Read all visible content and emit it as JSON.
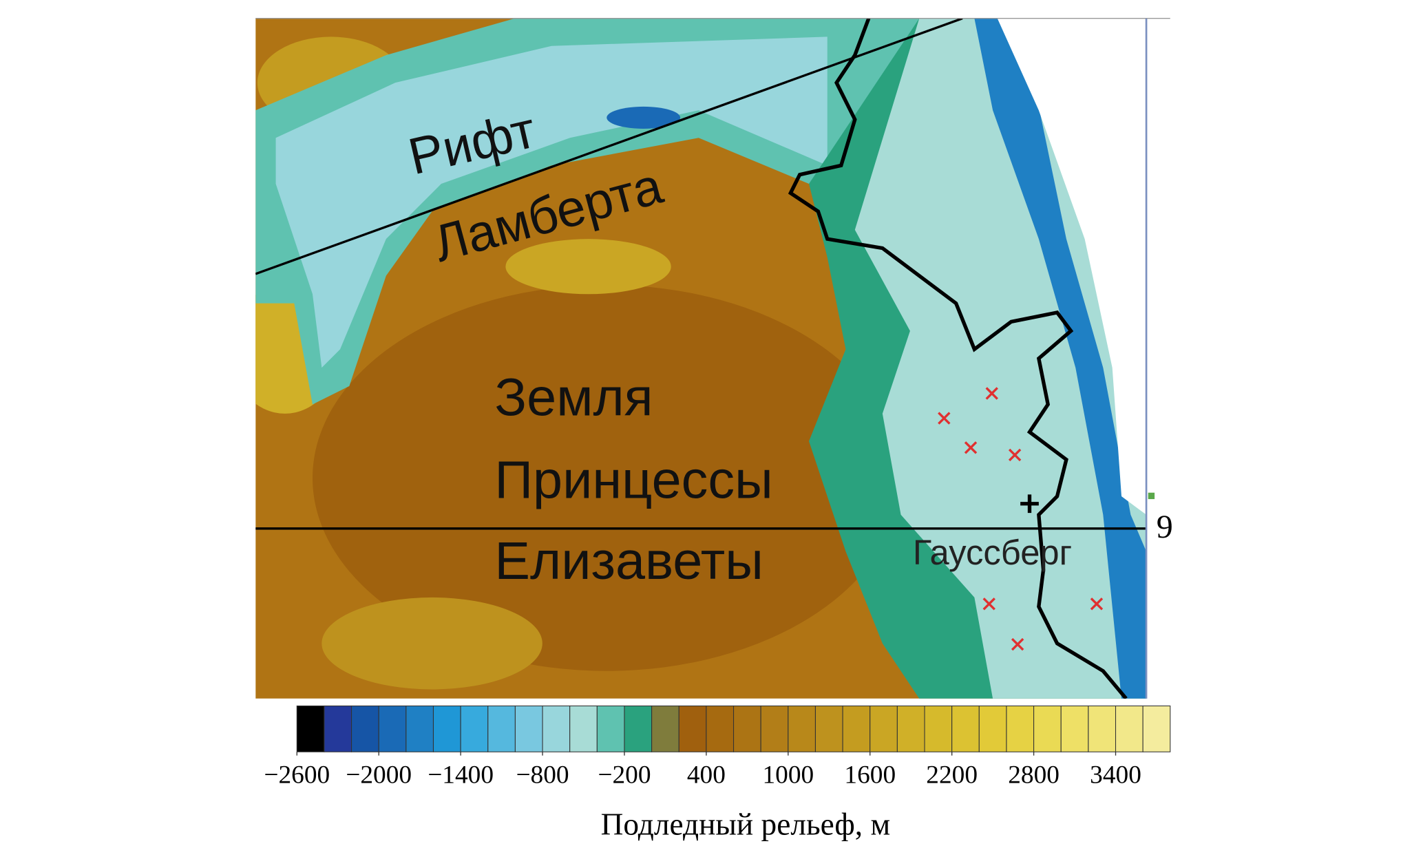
{
  "map": {
    "labels": {
      "rift_1": "Рифт",
      "rift_2": "Ламберта",
      "land_1": "Земля",
      "land_2": "Принцессы",
      "land_3": "Елизаветы",
      "gaussberg": "Гауссберг",
      "meridian": "9"
    }
  },
  "colorbar": {
    "title": "Подледный рельеф, м",
    "bins": [
      -2600,
      -2400,
      -2200,
      -2000,
      -1800,
      -1600,
      -1400,
      -1200,
      -1000,
      -800,
      -600,
      -400,
      -200,
      0,
      200,
      400,
      600,
      800,
      1000,
      1200,
      1400,
      1600,
      1800,
      2000,
      2200,
      2400,
      2600,
      2800,
      3000,
      3200,
      3400,
      3600,
      3800
    ],
    "colors": [
      "#000000",
      "#24399a",
      "#1655a6",
      "#1a6ab6",
      "#1f80c4",
      "#1f97d6",
      "#37aadd",
      "#55b8de",
      "#79c8e0",
      "#98d6dc",
      "#a8dcd6",
      "#5fc2b0",
      "#2aa27e",
      "#7f7c3c",
      "#a0600e",
      "#a66a10",
      "#ac7414",
      "#b27e18",
      "#b8881a",
      "#be921e",
      "#c49c20",
      "#caa624",
      "#d0b028",
      "#d6ba2c",
      "#dcc232",
      "#e2ca38",
      "#e6d244",
      "#eada54",
      "#eee066",
      "#f0e478",
      "#f2e88a",
      "#f4ec9e"
    ],
    "ticks": [
      {
        "value": -2600,
        "label": "−2600"
      },
      {
        "value": -2000,
        "label": "−2000"
      },
      {
        "value": -1400,
        "label": "−1400"
      },
      {
        "value": -800,
        "label": "−800"
      },
      {
        "value": -200,
        "label": "−200"
      },
      400,
      1000,
      1600,
      2200,
      2800,
      3400
    ]
  }
}
